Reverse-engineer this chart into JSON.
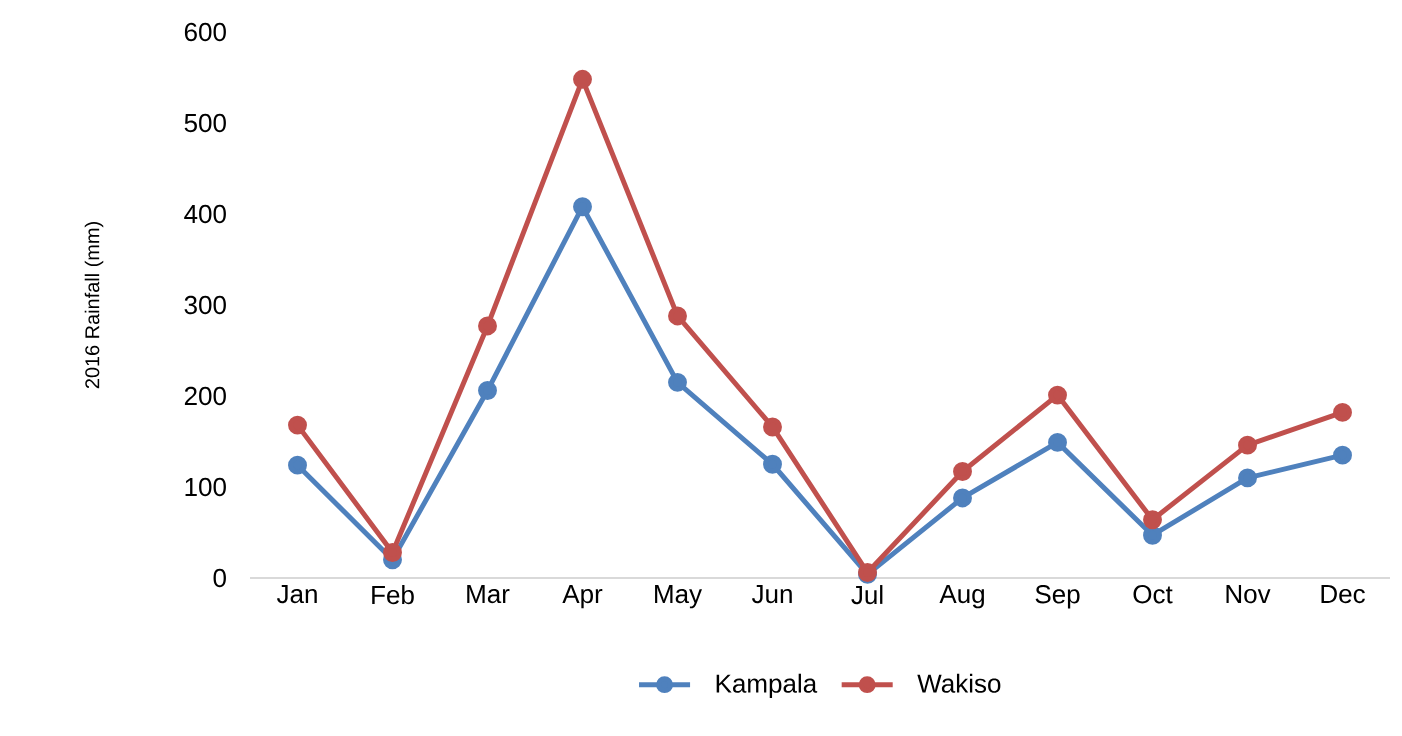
{
  "chart_data": {
    "type": "line",
    "ylabel": "2016 Rainfall (mm)",
    "categories": [
      "Jan",
      "Feb",
      "Mar",
      "Apr",
      "May",
      "Jun",
      "Jul",
      "Aug",
      "Sep",
      "Oct",
      "Nov",
      "Dec"
    ],
    "series": [
      {
        "name": "Kampala",
        "color": "#4f81bd",
        "values": [
          124,
          20,
          206,
          408,
          215,
          125,
          4,
          88,
          149,
          47,
          110,
          135
        ]
      },
      {
        "name": "Wakiso",
        "color": "#c0504d",
        "values": [
          168,
          28,
          277,
          548,
          288,
          166,
          6,
          117,
          201,
          64,
          146,
          182
        ]
      }
    ],
    "ylim": [
      0,
      600
    ],
    "yticks": [
      0,
      100,
      200,
      300,
      400,
      500,
      600
    ],
    "grid": false,
    "legend": "bottom",
    "marker": "circle",
    "line_style": "solid"
  }
}
